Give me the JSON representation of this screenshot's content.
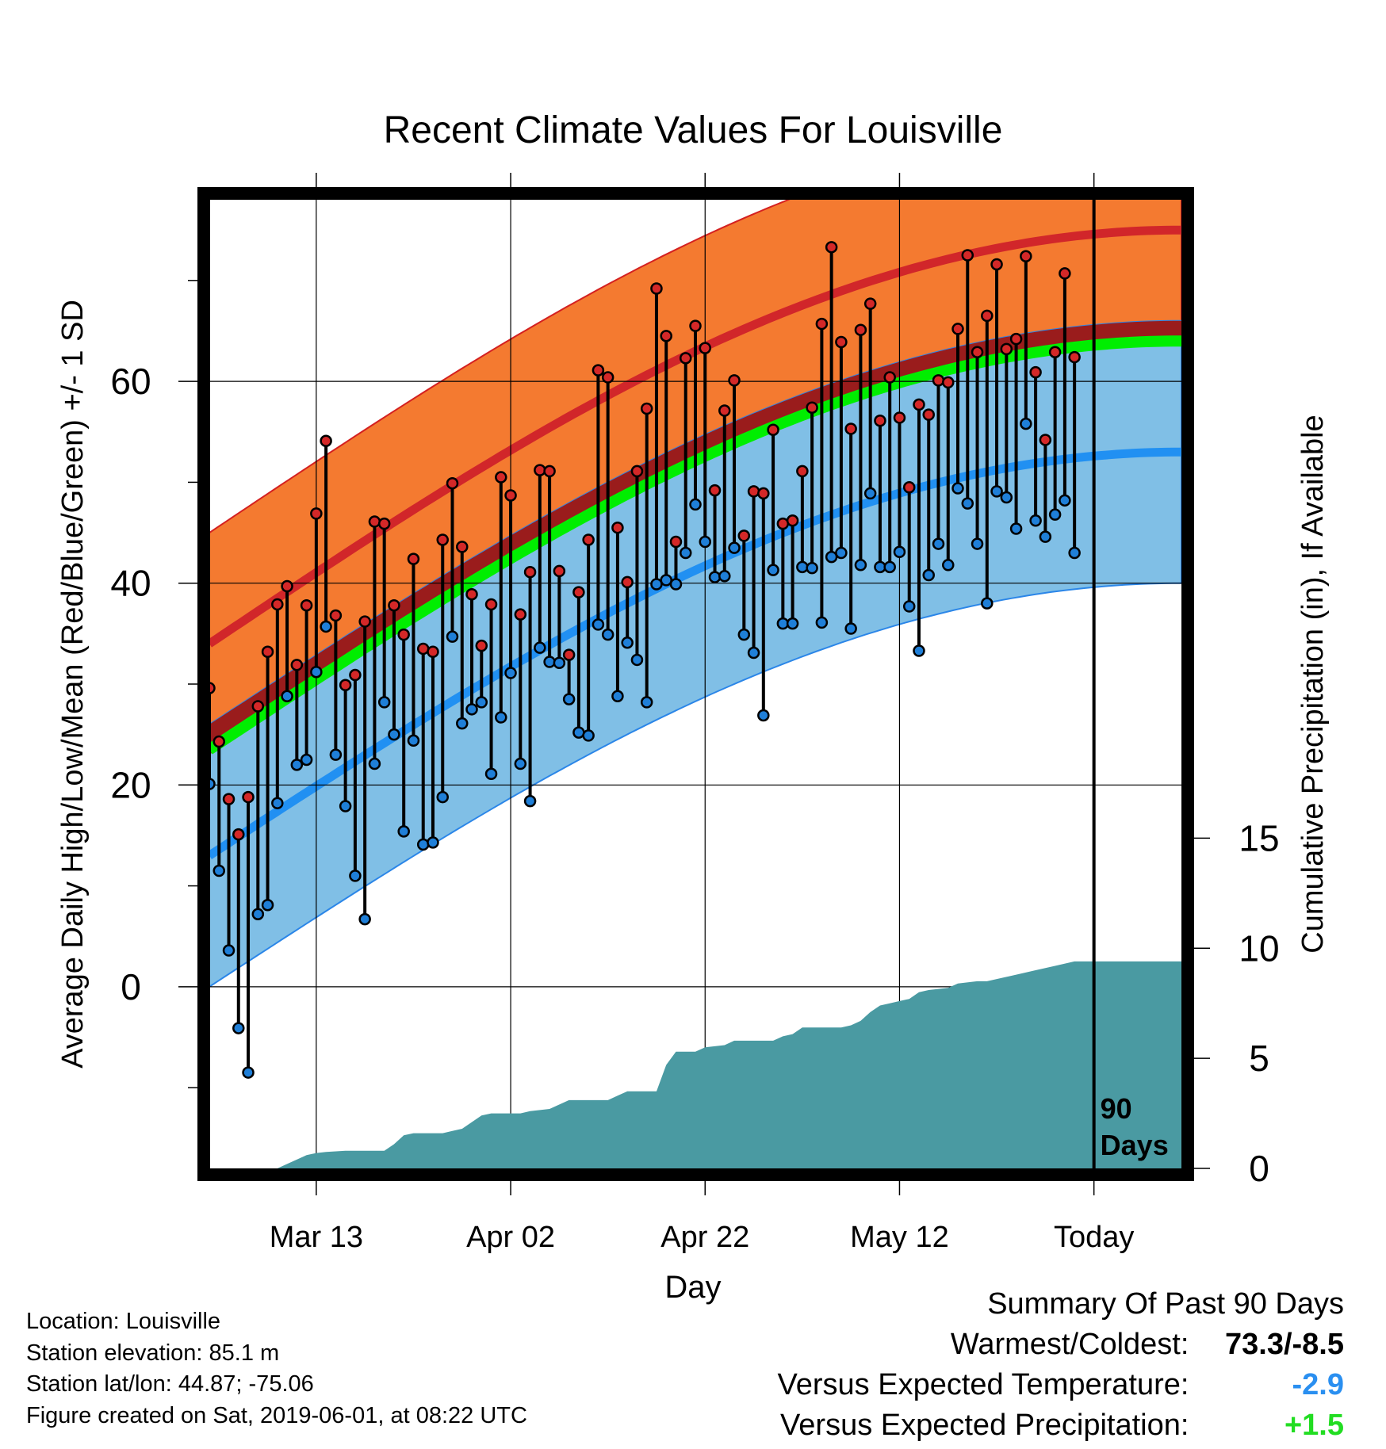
{
  "chart_data": {
    "type": "line",
    "title": "Recent Climate Values For Louisville",
    "xlabel": "Day",
    "ylabel_left": "Average Daily High/Low/Mean (Red/Blue/Green) +/- 1 SD",
    "ylabel_right": "Cumulative Precipitation (in), If Available",
    "x_ticks": [
      {
        "day": 12,
        "label": "Mar 13"
      },
      {
        "day": 32,
        "label": "Apr 02"
      },
      {
        "day": 52,
        "label": "Apr 22"
      },
      {
        "day": 72,
        "label": "May 12"
      },
      {
        "day": 92,
        "label": "Today"
      }
    ],
    "x_range": [
      1,
      101
    ],
    "today_day": 92,
    "today_label": [
      "90",
      "Days"
    ],
    "y_left_range": [
      -18,
      78
    ],
    "y_left_ticks": [
      0,
      20,
      40,
      60
    ],
    "y_right_range": [
      0,
      44
    ],
    "y_right_ticks": [
      0,
      5,
      10,
      15
    ],
    "normals": {
      "high_mean": {
        "start": 34,
        "end": 75,
        "sd": 11
      },
      "low_mean": {
        "start": 13,
        "end": 53,
        "sd": 13
      },
      "mean": {
        "start": 23.5,
        "end": 64
      }
    },
    "daily_high": [
      29.6,
      24.3,
      18.6,
      15.1,
      18.8,
      27.8,
      33.2,
      37.9,
      39.7,
      31.9,
      37.8,
      46.9,
      54.1,
      36.8,
      29.9,
      30.9,
      36.2,
      46.1,
      45.9,
      37.8,
      34.9,
      42.4,
      33.5,
      33.2,
      44.3,
      49.9,
      43.6,
      38.9,
      33.8,
      37.9,
      50.5,
      48.7,
      36.9,
      41.1,
      51.2,
      51.1,
      41.2,
      32.9,
      39.1,
      44.3,
      61.1,
      60.4,
      45.5,
      40.1,
      51.1,
      57.3,
      69.2,
      64.5,
      44.1,
      62.3,
      65.5,
      63.3,
      49.2,
      57.1,
      60.1,
      44.7,
      49.1,
      48.9,
      55.2,
      45.9,
      46.2,
      51.1,
      57.4,
      65.7,
      73.3,
      63.9,
      55.3,
      65.1,
      67.7,
      56.1,
      60.4,
      56.4,
      49.5,
      57.7,
      56.7,
      60.1,
      59.9,
      65.2,
      72.5,
      62.9,
      66.5,
      71.6,
      63.2,
      64.2,
      72.4,
      60.9,
      54.2,
      62.9,
      70.7,
      62.4
    ],
    "daily_low": [
      20.1,
      11.5,
      3.6,
      -4.1,
      -8.5,
      7.2,
      8.1,
      18.2,
      28.8,
      22.0,
      22.5,
      31.2,
      35.7,
      23.0,
      17.9,
      11.0,
      6.7,
      22.1,
      28.2,
      25.0,
      15.4,
      24.4,
      14.1,
      14.3,
      18.8,
      34.7,
      26.1,
      27.5,
      28.2,
      21.1,
      26.7,
      31.1,
      22.1,
      18.4,
      33.6,
      32.2,
      32.1,
      28.5,
      25.2,
      24.9,
      35.9,
      34.9,
      28.8,
      34.1,
      32.4,
      28.2,
      39.9,
      40.3,
      39.9,
      43.0,
      47.8,
      44.1,
      40.6,
      40.7,
      43.5,
      34.9,
      33.1,
      26.9,
      41.3,
      36.0,
      36.0,
      41.6,
      41.5,
      36.1,
      42.6,
      43.0,
      35.5,
      41.8,
      48.9,
      41.6,
      41.6,
      43.1,
      37.7,
      33.3,
      40.8,
      43.9,
      41.8,
      49.4,
      47.9,
      43.9,
      38.0,
      49.1,
      48.5,
      45.4,
      55.8,
      46.2,
      44.6,
      46.8,
      48.2,
      43.0
    ],
    "cumulative_precip": [
      {
        "day": 1,
        "value": 0
      },
      {
        "day": 8,
        "value": 0
      },
      {
        "day": 9,
        "value": 0.2
      },
      {
        "day": 10,
        "value": 0.4
      },
      {
        "day": 11,
        "value": 0.6
      },
      {
        "day": 12,
        "value": 0.7
      },
      {
        "day": 13,
        "value": 0.75
      },
      {
        "day": 15,
        "value": 0.8
      },
      {
        "day": 19,
        "value": 0.8
      },
      {
        "day": 20,
        "value": 1.1
      },
      {
        "day": 21,
        "value": 1.5
      },
      {
        "day": 22,
        "value": 1.6
      },
      {
        "day": 25,
        "value": 1.6
      },
      {
        "day": 26,
        "value": 1.7
      },
      {
        "day": 27,
        "value": 1.8
      },
      {
        "day": 29,
        "value": 2.4
      },
      {
        "day": 30,
        "value": 2.5
      },
      {
        "day": 33,
        "value": 2.5
      },
      {
        "day": 34,
        "value": 2.6
      },
      {
        "day": 36,
        "value": 2.7
      },
      {
        "day": 38,
        "value": 3.1
      },
      {
        "day": 42,
        "value": 3.1
      },
      {
        "day": 43,
        "value": 3.3
      },
      {
        "day": 44,
        "value": 3.5
      },
      {
        "day": 47,
        "value": 3.5
      },
      {
        "day": 48,
        "value": 4.7
      },
      {
        "day": 49,
        "value": 5.3
      },
      {
        "day": 51,
        "value": 5.3
      },
      {
        "day": 52,
        "value": 5.5
      },
      {
        "day": 54,
        "value": 5.6
      },
      {
        "day": 55,
        "value": 5.8
      },
      {
        "day": 59,
        "value": 5.8
      },
      {
        "day": 60,
        "value": 6.0
      },
      {
        "day": 61,
        "value": 6.1
      },
      {
        "day": 62,
        "value": 6.4
      },
      {
        "day": 66,
        "value": 6.4
      },
      {
        "day": 67,
        "value": 6.5
      },
      {
        "day": 68,
        "value": 6.7
      },
      {
        "day": 69,
        "value": 7.1
      },
      {
        "day": 70,
        "value": 7.4
      },
      {
        "day": 71,
        "value": 7.5
      },
      {
        "day": 72,
        "value": 7.6
      },
      {
        "day": 73,
        "value": 7.7
      },
      {
        "day": 74,
        "value": 8.0
      },
      {
        "day": 75,
        "value": 8.1
      },
      {
        "day": 77,
        "value": 8.2
      },
      {
        "day": 78,
        "value": 8.4
      },
      {
        "day": 80,
        "value": 8.5
      },
      {
        "day": 81,
        "value": 8.5
      },
      {
        "day": 83,
        "value": 8.7
      },
      {
        "day": 84,
        "value": 8.8
      },
      {
        "day": 86,
        "value": 9.0
      },
      {
        "day": 88,
        "value": 9.2
      },
      {
        "day": 90,
        "value": 9.4
      },
      {
        "day": 92,
        "value": 9.4
      },
      {
        "day": 101,
        "value": 9.4
      }
    ],
    "colors": {
      "high_band": "#f47a30",
      "high_line": "#d1262a",
      "high_edge": "#d42020",
      "low_band": "#80bfe6",
      "low_line": "#2190f2",
      "low_edge": "#2b86e8",
      "overlap_band": "#9a1c1c",
      "mean_line": "#00ee00",
      "precip": "#4a9aa2",
      "high_dot": "#d42828",
      "low_dot": "#1f7fd8"
    }
  },
  "footer": {
    "location": "Location: Louisville",
    "elevation": "Station elevation: 85.1 m",
    "latlon": "Station lat/lon: 44.87; -75.06",
    "created": "Figure created on Sat, 2019-06-01, at 08:22 UTC"
  },
  "summary": {
    "heading": "Summary Of Past 90 Days",
    "warmest_label": "Warmest/Coldest:",
    "warmest_value": "73.3/-8.5",
    "temp_label": "Versus Expected Temperature:",
    "temp_value": "-2.9",
    "temp_color": "#2a8ff0",
    "precip_label": "Versus Expected Precipitation:",
    "precip_value": "+1.5",
    "precip_color": "#22dd22"
  }
}
